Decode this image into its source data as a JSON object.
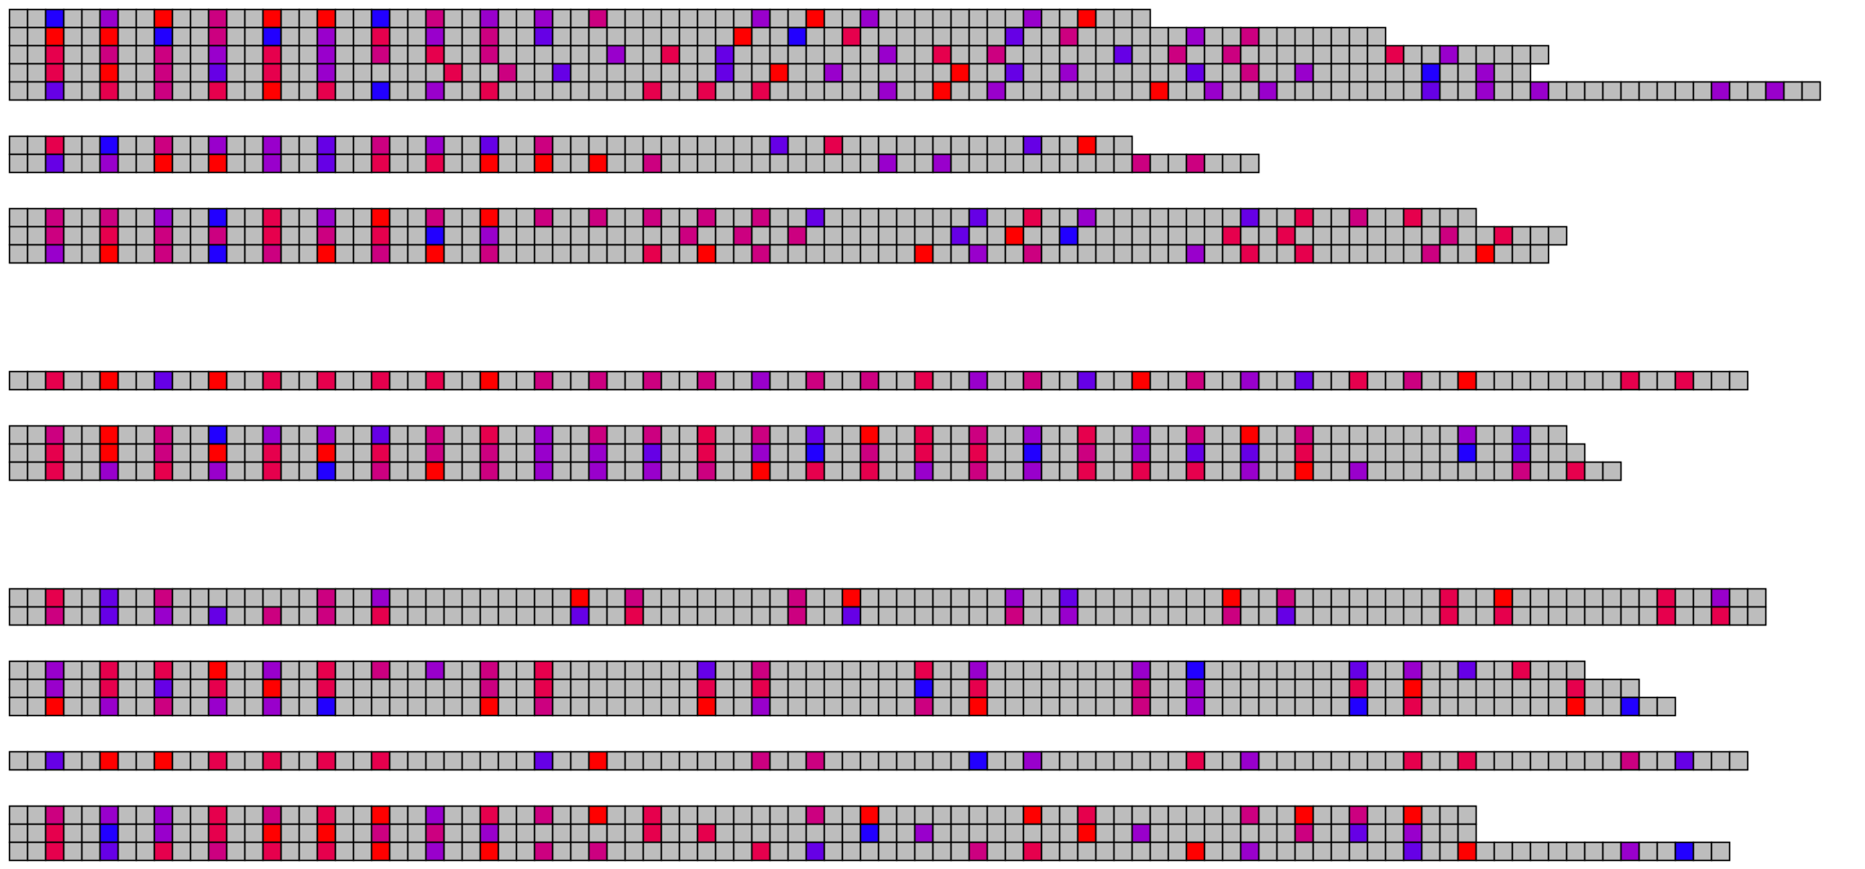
{
  "palette": {
    "g": "#bdbdbd",
    "R": "#ff0000",
    "C": "#e6004d",
    "M": "#cc0080",
    "P": "#9900cc",
    "V": "#6600e6",
    "B": "#2200ff",
    "border": "#000000"
  },
  "groups": [
    [
      "ggBggPggRggMggRggRggBggMggPggPggMggggggggPggRggPggggggggPggRggg",
      "ggRggRggBggMggBggPggCggPggMggVggggggggggRggBggCggggggggVggMggggggPggMggggggg",
      "ggCggMggMggPggCggPggMggCggMggggggPggCggVggggggggPggCggMggggggVggMggMggggggggCggPggggg",
      "ggCggRggMggVggCggPggggggCggMggVggggggggVggRggPggggggRggVggPggggggVggMggPggggggBggPgg",
      "ggVggCggMggCggRggCggBggPggCggggggggCggCggCggggggPggRggPggggggggRggPggPggggggggVggPggPgggggggggPggPgg"
    ],
    [
      "ggCggBggMggPggPggVggMggPggVggMggggggggggggVggCggggggggggVggRgg",
      "ggVggPggRggRggPggVggCggCggRggRggRggMggggggggggggPggPggggggggggMggMggg"
    ],
    [
      "ggMggMggPggBggCggPggRggMggRggMggMggMggMggMggVggggggggVggCggPggggggggVggCggMggCggg",
      "ggMggCggMggMggCggMggCggBggPggggggggggMggMggMggggggggVggRggBggggggggCggCggggggggMggCggg",
      "ggPggRggMggBggMggRggMggRggMggggggggCggRggMggggggggRggPggMggggggggPggCggCggggggMggRggg"
    ],
    [
      "ggCggRggVggRggCggCggCggCggRggMggMggMggMggPggMggMggCggPggMggVggRggMggPggVggCggMggRggggggggCggCggg"
    ],
    [
      "ggMggRggMggBggPggPggVggMggCggPggMggMggCggMggVggRggCggMggPggCggPggMggRggMggggggggPggVgg",
      "ggCggRggMggRggCggRggCggMggMggPggPggVggCggPggBggMggCggCggBggMggPggVggVggCggggggggBggVggg",
      "ggCggPggCggPggCggBggMggRggMggPggPggPggMggRggCggCggPggMggPggCggCggCggPggRggPggggggggMggCgg"
    ],
    [
      "ggCggVggMggggggggMggPggggggggggRggMggggggggMggRggggggggPggVggggggggRggMggggggggCggRggggggggCggPgg",
      "ggMggVggPggVggMggMggCggggggggggVggCggggggggMggVggggggggMggPggggggggMggVggggggggCggCggggggggCggCgg"
    ],
    [
      "ggPggCggCggRggPggCggMggPggMggCggggggggVggMggggggggCggPggggggggPggBggggggggVggPggVggCggg",
      "ggPggCggVggCggRggCggggggggMggCggggggggCggCggggggggBggCggggggggMggPggggggggCggRggggggggCggg",
      "ggRggPggMggPggPggBggggggggRggMggggggggRggPggggggggMggRggggggggMggPggggggggBggCggggggggRggBgg"
    ],
    [
      "ggVggRggRggCggCggCggCggggggggVggRggggggggMggMggggggggBggPggggggggCggPggggggggCggCggggggggMggVggg"
    ],
    [
      "ggMggPggPggCggMggCggRggPggCggMggRggCggggggggMggRggggggggRggCggggggggMggRggMggRggg",
      "ggCggBggPggCggRggRggMggMggPggggggggCggCggggggggBggPggggggggRggPggggggggMggVggPggg",
      "ggCggVggCggMggCggCggRggPggRggMggMggggggggCggVggggggggMggCggggggggRggPggggggggVggRggggggggPggBgg"
    ]
  ]
}
